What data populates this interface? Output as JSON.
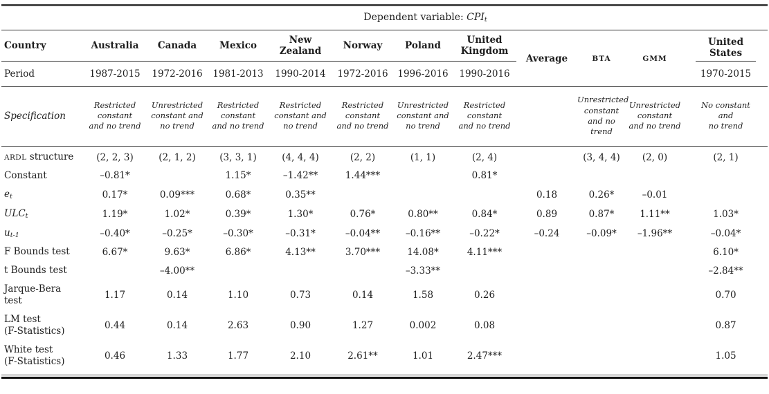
{
  "colors": {
    "background": "#ffffff",
    "text": "#1e1e1e",
    "rule": "#2e2e2e"
  },
  "table": {
    "title_parts": [
      {
        "t": "Dependent variable: "
      },
      {
        "t": "CPI",
        "s": "i"
      },
      {
        "t": "t",
        "s": "sub"
      }
    ],
    "header": {
      "country_label": "Country",
      "period_label": "Period",
      "specification_label": "Specification",
      "columns": [
        {
          "name": "Australia",
          "period": "1987-2015",
          "spec": "Restricted\nconstant\nand no trend"
        },
        {
          "name": "Canada",
          "period": "1972-2016",
          "spec": "Unrestricted\nconstant and\nno trend"
        },
        {
          "name": "Mexico",
          "period": "1981-2013",
          "spec": "Restricted\nconstant\nand no trend"
        },
        {
          "name": "New\nZealand",
          "period": "1990-2014",
          "spec": "Restricted\nconstant and\nno trend"
        },
        {
          "name": "Norway",
          "period": "1972-2016",
          "spec": "Restricted\nconstant\nand no trend"
        },
        {
          "name": "Poland",
          "period": "1996-2016",
          "spec": "Unrestricted\nconstant and\nno trend"
        },
        {
          "name": "United\nKingdom",
          "period": "1990-2016",
          "spec": "Restricted\nconstant\nand no trend"
        },
        {
          "name": "Average",
          "period": "",
          "spec": ""
        },
        {
          "name": "BTA",
          "period": "",
          "spec": "Unrestricted\nconstant\nand no trend"
        },
        {
          "name": "GMM",
          "period": "",
          "spec": "Unrestricted\nconstant\nand no trend"
        },
        {
          "name": "United\nStates",
          "period": "1970-2015",
          "spec": "No constant\nand\nno trend"
        }
      ]
    },
    "body_rows": [
      {
        "id": "ardl-structure",
        "label": [
          {
            "t": "ARDL",
            "s": "sc"
          },
          {
            "t": " structure"
          }
        ],
        "cells": [
          "(2, 2, 3)",
          "(2, 1, 2)",
          "(3, 3, 1)",
          "(4, 4, 4)",
          "(2, 2)",
          "(1, 1)",
          "(2, 4)",
          "",
          "(3, 4, 4)",
          "(2, 0)",
          "(2, 1)"
        ]
      },
      {
        "id": "constant",
        "label": [
          {
            "t": "Constant"
          }
        ],
        "cells": [
          "–0.81*",
          "",
          "1.15*",
          "–1.42**",
          "1.44***",
          "",
          "0.81*",
          "",
          "",
          "",
          ""
        ]
      },
      {
        "id": "e-t",
        "label": [
          {
            "t": "e",
            "s": "i"
          },
          {
            "t": "t",
            "s": "sub"
          }
        ],
        "cells": [
          "0.17*",
          "0.09***",
          "0.68*",
          "0.35**",
          "",
          "",
          "",
          "0.18",
          "0.26*",
          "–0.01",
          ""
        ]
      },
      {
        "id": "ulc-t",
        "label": [
          {
            "t": "ULC",
            "s": "i"
          },
          {
            "t": "t",
            "s": "sub"
          }
        ],
        "cells": [
          "1.19*",
          "1.02*",
          "0.39*",
          "1.30*",
          "0.76*",
          "0.80**",
          "0.84*",
          "0.89",
          "0.87*",
          "1.11**",
          "1.03*"
        ]
      },
      {
        "id": "u-t-1",
        "label": [
          {
            "t": "u",
            "s": "i"
          },
          {
            "t": "t-1",
            "s": "sub"
          }
        ],
        "cells": [
          "–0.40*",
          "–0.25*",
          "–0.30*",
          "–0.31*",
          "–0.04**",
          "–0.16**",
          "–0.22*",
          "–0.24",
          "–0.09*",
          "–1.96**",
          "–0.04*"
        ]
      },
      {
        "id": "f-bounds-test",
        "label": [
          {
            "t": "F Bounds test"
          }
        ],
        "cells": [
          "6.67*",
          "9.63*",
          "6.86*",
          "4.13**",
          "3.70***",
          "14.08*",
          "4.11***",
          "",
          "",
          "",
          "6.10*"
        ]
      },
      {
        "id": "t-bounds-test",
        "label": [
          {
            "t": "t Bounds test"
          }
        ],
        "cells": [
          "",
          "–4.00**",
          "",
          "",
          "",
          "–3.33**",
          "",
          "",
          "",
          "",
          "–2.84**"
        ]
      },
      {
        "id": "jarque-bera-test",
        "label": [
          {
            "t": "Jarque-Bera\ntest"
          }
        ],
        "cells": [
          "1.17",
          "0.14",
          "1.10",
          "0.73",
          "0.14",
          "1.58",
          "0.26",
          "",
          "",
          "",
          "0.70"
        ]
      },
      {
        "id": "lm-test",
        "label": [
          {
            "t": "LM test\n(F-Statistics)"
          }
        ],
        "cells": [
          "0.44",
          "0.14",
          "2.63",
          "0.90",
          "1.27",
          "0.002",
          "0.08",
          "",
          "",
          "",
          "0.87"
        ]
      },
      {
        "id": "white-test",
        "label": [
          {
            "t": "White test\n(F-Statistics)"
          }
        ],
        "cells": [
          "0.46",
          "1.33",
          "1.77",
          "2.10",
          "2.61**",
          "1.01",
          "2.47***",
          "",
          "",
          "",
          "1.05"
        ]
      }
    ]
  }
}
